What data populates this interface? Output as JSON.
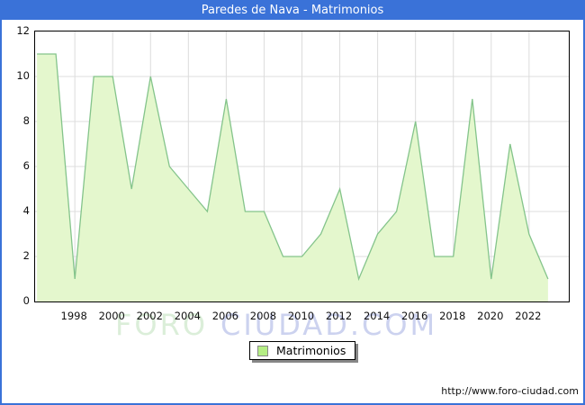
{
  "window": {
    "title": "Paredes de Nava - Matrimonios"
  },
  "colors": {
    "titlebar_bg": "#3a72d8",
    "titlebar_text": "#ffffff",
    "frame_border": "#3a72d8",
    "area_fill": "#e4f7cd",
    "area_line": "#84c48b",
    "grid": "#dcdcdc",
    "plot_border": "#000000",
    "legend_swatch_fill": "#b5ee85",
    "legend_swatch_border": "#8a8a8a"
  },
  "chart_data": {
    "type": "area",
    "title": "Paredes de Nava - Matrimonios",
    "series_name": "Matrimonios",
    "x": [
      1996,
      1997,
      1998,
      1999,
      2000,
      2001,
      2002,
      2003,
      2004,
      2005,
      2006,
      2007,
      2008,
      2009,
      2010,
      2011,
      2012,
      2013,
      2014,
      2015,
      2016,
      2017,
      2018,
      2019,
      2020,
      2021,
      2022,
      2023
    ],
    "values": [
      11,
      11,
      1,
      10,
      10,
      5,
      10,
      6,
      5,
      4,
      9,
      4,
      4,
      2,
      2,
      3,
      5,
      1,
      3,
      4,
      8,
      2,
      2,
      9,
      1,
      7,
      3,
      1
    ],
    "xlim": [
      1995.9,
      2024.1
    ],
    "ylim": [
      0,
      12
    ],
    "y_ticks": [
      0,
      2,
      4,
      6,
      8,
      10,
      12
    ],
    "x_ticks": [
      1998,
      2000,
      2002,
      2004,
      2006,
      2008,
      2010,
      2012,
      2014,
      2016,
      2018,
      2020,
      2022
    ],
    "grid": true,
    "legend_position": "bottom-center"
  },
  "legend": {
    "label": "Matrimonios"
  },
  "watermark": {
    "part1": "FORO",
    "part2": "CIUDAD.COM"
  },
  "footer": {
    "url": "http://www.foro-ciudad.com"
  }
}
